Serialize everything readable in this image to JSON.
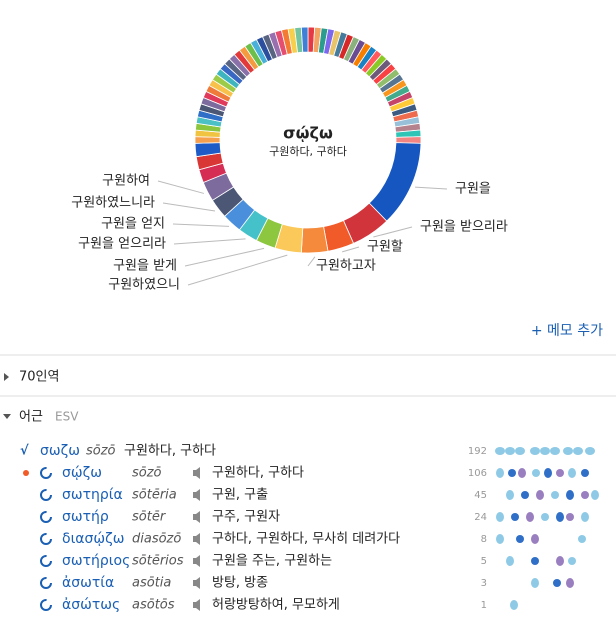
{
  "chart_data": {
    "type": "pie",
    "title": "σῴζω",
    "subtitle": "구원하다, 구하다",
    "labels": [
      null,
      null,
      null,
      null,
      null,
      null,
      null,
      null,
      null,
      null,
      null,
      null,
      null,
      null,
      null,
      null,
      null,
      null,
      null,
      null,
      null,
      null,
      null,
      null,
      null,
      null,
      null,
      "구원을",
      "구원을 받으리라",
      "구원할",
      "구원하고자",
      "구원하였으니",
      "구원을 받게",
      "구원을 얻으리라",
      "구원을 얻지",
      "구원하였느니라",
      "구원하여",
      null,
      null,
      null,
      null,
      null,
      null,
      null,
      null,
      null,
      null,
      null,
      null,
      null,
      null,
      null,
      null,
      null,
      null,
      null,
      null,
      null,
      null,
      null,
      null,
      null,
      null,
      null,
      null,
      null,
      null
    ],
    "values": [
      1,
      1,
      1,
      1,
      1,
      1,
      1,
      1,
      1,
      1,
      1,
      1,
      1,
      1,
      1,
      1,
      1,
      1,
      1,
      1,
      1,
      1,
      1,
      1,
      1,
      1,
      1,
      13,
      6,
      4,
      4,
      4,
      3,
      3,
      3,
      3,
      3,
      2,
      2,
      2,
      1,
      1,
      1,
      1,
      1,
      1,
      1,
      1,
      1,
      1,
      1,
      1,
      1,
      1,
      1,
      1,
      1,
      1,
      1,
      1,
      1,
      1,
      1,
      1,
      1,
      1,
      1
    ],
    "colors": [
      "#e63946",
      "#f4a261",
      "#2a9d8f",
      "#7b68ee",
      "#e9c46a",
      "#457b9d",
      "#d62828",
      "#8ab17d",
      "#6a4c93",
      "#f77f00",
      "#1982c4",
      "#ff595e",
      "#8ac926",
      "#6d597a",
      "#f94144",
      "#90be6d",
      "#577590",
      "#f8961e",
      "#43aa8b",
      "#c44569",
      "#ffca3a",
      "#3d5a80",
      "#ee6c4d",
      "#98c1d9",
      "#b5838d",
      "#2ec4b6",
      "#f28482",
      "#1656c1",
      "#d1343a",
      "#f15a29",
      "#f58a3c",
      "#fbc95a",
      "#8dc63f",
      "#45c2c9",
      "#4a8fdb",
      "#4b5775",
      "#7d6b9e",
      "#d62d55",
      "#d93636",
      "#1e5bc6",
      "#f6a04d",
      "#f0c341",
      "#8cc63f",
      "#4cc1c5",
      "#2f6fc7",
      "#4b5775",
      "#7d6b9e",
      "#e0395a",
      "#ef7b3a",
      "#f8c14a",
      "#9bcb47",
      "#3fb6bf",
      "#3867c4",
      "#5a6583",
      "#8a70a9",
      "#e23a3a",
      "#f59b3f",
      "#6cbf4a",
      "#48b0d9",
      "#2b4f9e",
      "#586480",
      "#996fb0",
      "#e54e6e",
      "#f47a33",
      "#f6d04d",
      "#73c4a0",
      "#3f80d6"
    ]
  },
  "add_note": "+ 메모 추가",
  "sections": [
    {
      "title": "70인역"
    },
    {
      "title": "어근",
      "version": "ESV"
    }
  ],
  "root": {
    "symbol": "√",
    "lemma": "σωζω",
    "translit": "sōzō",
    "gloss": "구원하다, 구하다",
    "count": 192
  },
  "words": [
    {
      "lemma": "σῴζω",
      "translit": "sōzō",
      "gloss": "구원하다, 구하다",
      "count": 106
    },
    {
      "lemma": "σωτηρία",
      "translit": "sōtēria",
      "gloss": "구원, 구출",
      "count": 45
    },
    {
      "lemma": "σωτήρ",
      "translit": "sōtēr",
      "gloss": "구주, 구원자",
      "count": 24
    },
    {
      "lemma": "διασῴζω",
      "translit": "diasōzō",
      "gloss": "구하다, 구원하다, 무사히 데려가다",
      "count": 8
    },
    {
      "lemma": "σωτήριος",
      "translit": "sōtērios",
      "gloss": "구원을 주는, 구원하는",
      "count": 5
    },
    {
      "lemma": "ἀσωτία",
      "translit": "asōtia",
      "gloss": "방탕, 방종",
      "count": 3
    },
    {
      "lemma": "ἀσώτως",
      "translit": "asōtōs",
      "gloss": "허랑방탕하여, 무모하게",
      "count": 1
    }
  ]
}
